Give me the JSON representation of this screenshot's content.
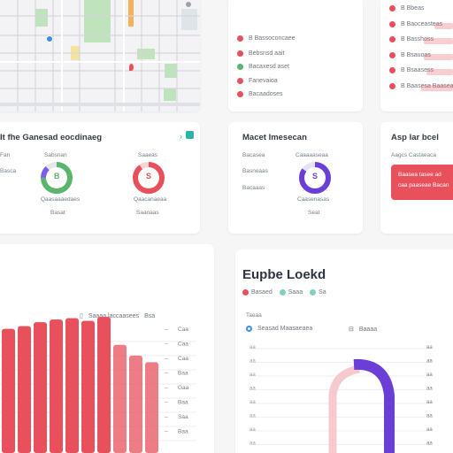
{
  "map": {
    "icons": [
      "map-pin-icon",
      "map-pin-icon",
      "map-pin-icon"
    ]
  },
  "legend_top": {
    "items": [
      {
        "label": "B Bassoconcaee",
        "color": "#e8505b"
      },
      {
        "label": "Bebsnsd aait",
        "color": "#e8505b"
      },
      {
        "label": "Bacaxesd aset",
        "color": "#5ab56d"
      },
      {
        "label": "Fanevaioa",
        "color": "#e8505b"
      },
      {
        "label": "Bacaadoses",
        "color": "#e8505b"
      }
    ]
  },
  "right_list": {
    "items": [
      {
        "label": "B Bbeas",
        "color": "#e8505b",
        "value": 0.0
      },
      {
        "label": "B Baoceasteas",
        "color": "#e8505b",
        "value": 0.35
      },
      {
        "label": "B Basshoss",
        "color": "#e8505b",
        "value": 0.55
      },
      {
        "label": "B Bsauoas",
        "color": "#e8505b",
        "value": 0.55
      },
      {
        "label": "B Bsaasess",
        "color": "#e8505b",
        "value": 0.5
      },
      {
        "label": "B Baasesa Baasea",
        "color": "#e8505b",
        "value": 0.6
      }
    ]
  },
  "donut_card": {
    "title": "It fhe Ganesad eocdinaeg",
    "link_icon": "chevron-right-icon",
    "left_labels": [
      "Fan",
      "Basca"
    ],
    "donuts": [
      {
        "top": "Sabsnan",
        "center": "B",
        "bottom": "Qaasaaaedaes",
        "sub": "Basat",
        "color": "#5ab56d",
        "accent": "#7a5cf0",
        "value": 0.75
      },
      {
        "top": "Saaeas",
        "center": "S",
        "bottom": "Qaacanaeaa",
        "sub": "Saanaas",
        "color": "#e8505b",
        "accent": "#e8505b",
        "value": 0.9
      }
    ]
  },
  "middle_card": {
    "title": "Macet Imesecan",
    "left_labels": [
      "Bacasea",
      "Basneaas",
      "Bacaaas"
    ],
    "donut": {
      "top": "Caaaaaseaa",
      "center": "S",
      "bottom": "Caasenasas",
      "sub": "Seat",
      "color": "#6b3fd6",
      "value": 0.85
    }
  },
  "alert_card": {
    "title": "Asp lar bcel",
    "subtitle": "Aagcs Castaeaca",
    "message": "Baasea tasee ad caa paaseae Bacan",
    "bar_color": "#e8505b"
  },
  "bar_chart_card": {
    "legend_label": "Saaaa laccaasees",
    "legend_sub": "Bsa",
    "right_labels": [
      "Caa",
      "Caa",
      "Caa",
      "Baa",
      "Gaa",
      "Baa",
      "Saa",
      "Baa"
    ]
  },
  "chart_data": {
    "type": "bar",
    "categories": [
      "",
      "",
      "",
      "",
      "",
      "",
      "",
      "",
      "",
      ""
    ],
    "values": [
      93,
      95,
      98,
      100,
      101,
      99,
      102,
      81,
      73,
      68
    ],
    "series_color": "#e8505b"
  },
  "area_card": {
    "title": "Eupbe Loekd",
    "legend": [
      {
        "label": "Basaed",
        "color": "#e8505b"
      },
      {
        "label": "Saaa",
        "color": "#7fd1c3"
      },
      {
        "label": "Sa",
        "color": "#7fd1c3"
      }
    ],
    "header": "Taeaa",
    "series_label": "Seasad Maasaeaea",
    "series_label2": "Baaaa",
    "ylabels": [
      "aa",
      "aa",
      "aa",
      "aa",
      "aa",
      "aa",
      "aa",
      "aa"
    ],
    "right_labels": [
      "aa",
      "aa",
      "aa",
      "aa",
      "aa",
      "aa",
      "aa",
      "aa"
    ]
  }
}
